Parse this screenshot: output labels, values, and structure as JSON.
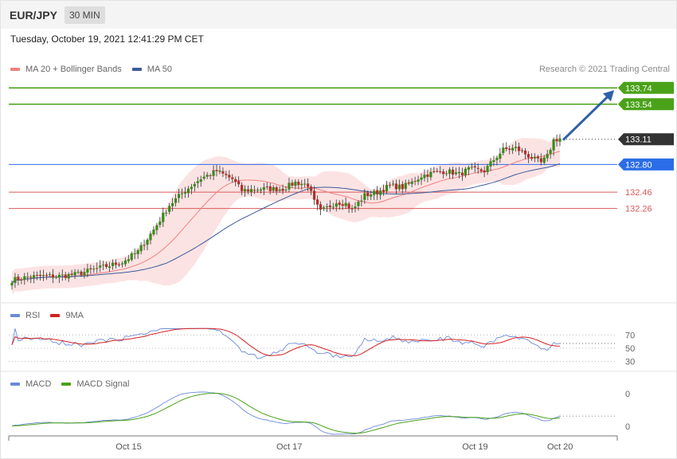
{
  "header": {
    "symbol": "EUR/JPY",
    "timeframe": "30 MIN"
  },
  "timestamp": "Tuesday, October 19, 2021 12:41:29 PM CET",
  "copyright": "Research © 2021 Trading Central",
  "colors": {
    "up": "#3a8a1a",
    "down": "#b1312d",
    "resistance": "#4aa219",
    "pivot": "#2b6de8",
    "support": "#d85a5a",
    "current": "#333333",
    "ma20": "#f08080",
    "ma50": "#3d5a9c",
    "bands": "#fbdede",
    "rsi": "#6b8ad8",
    "rsi_ma": "#d32020",
    "macd": "#6b8ad8",
    "macd_signal": "#4aa219",
    "arrow": "#2e5fa8"
  },
  "chart_data": [
    {
      "type": "candlestick",
      "id": "price",
      "legend": [
        {
          "name": "MA 20 + Bollinger Bands",
          "color": "#f08080"
        },
        {
          "name": "MA 50",
          "color": "#3d5a9c"
        }
      ],
      "ylim": [
        131.18,
        133.88
      ],
      "x_ticks": [
        {
          "label": "Oct 15",
          "index": 37
        },
        {
          "label": "Oct 17",
          "index": 88
        },
        {
          "label": "Oct 19",
          "index": 147
        },
        {
          "label": "Oct 20",
          "index": 174
        }
      ],
      "levels": [
        {
          "value": 133.74,
          "label": "133.74",
          "kind": "resistance"
        },
        {
          "value": 133.54,
          "label": "133.54",
          "kind": "resistance"
        },
        {
          "value": 133.11,
          "label": "133.11",
          "kind": "current"
        },
        {
          "value": 132.8,
          "label": "132.80",
          "kind": "pivot"
        },
        {
          "value": 132.46,
          "label": "132.46",
          "kind": "support"
        },
        {
          "value": 132.26,
          "label": "132.26",
          "kind": "support"
        }
      ],
      "arrow": {
        "from_value": 133.1,
        "to_value": 133.74
      },
      "anchors": [
        [
          0,
          131.38
        ],
        [
          5,
          131.42
        ],
        [
          10,
          131.43
        ],
        [
          15,
          131.43
        ],
        [
          20,
          131.45
        ],
        [
          25,
          131.5
        ],
        [
          30,
          131.55
        ],
        [
          35,
          131.6
        ],
        [
          40,
          131.73
        ],
        [
          45,
          132.0
        ],
        [
          50,
          132.3
        ],
        [
          55,
          132.48
        ],
        [
          60,
          132.63
        ],
        [
          65,
          132.72
        ],
        [
          70,
          132.62
        ],
        [
          73,
          132.48
        ],
        [
          78,
          132.5
        ],
        [
          82,
          132.5
        ],
        [
          86,
          132.5
        ],
        [
          90,
          132.58
        ],
        [
          94,
          132.55
        ],
        [
          96,
          132.34
        ],
        [
          98,
          132.22
        ],
        [
          103,
          132.34
        ],
        [
          106,
          132.32
        ],
        [
          108,
          132.24
        ],
        [
          112,
          132.42
        ],
        [
          116,
          132.46
        ],
        [
          120,
          132.54
        ],
        [
          124,
          132.52
        ],
        [
          127,
          132.58
        ],
        [
          130,
          132.66
        ],
        [
          134,
          132.7
        ],
        [
          138,
          132.72
        ],
        [
          142,
          132.68
        ],
        [
          145,
          132.74
        ],
        [
          150,
          132.72
        ],
        [
          153,
          132.86
        ],
        [
          156,
          132.98
        ],
        [
          160,
          133.0
        ],
        [
          163,
          132.93
        ],
        [
          166,
          132.86
        ],
        [
          168,
          132.82
        ],
        [
          170,
          132.9
        ],
        [
          172,
          133.1
        ],
        [
          174,
          133.12
        ]
      ]
    },
    {
      "type": "line",
      "id": "rsi",
      "series": [
        {
          "name": "RSI",
          "color": "#6b8ad8"
        },
        {
          "name": "9MA",
          "color": "#d32020"
        }
      ],
      "ylim": [
        20,
        80
      ],
      "y_ticks": [
        70,
        50,
        30
      ]
    },
    {
      "type": "line",
      "id": "macd",
      "series": [
        {
          "name": "MACD",
          "color": "#6b8ad8"
        },
        {
          "name": "MACD Signal",
          "color": "#4aa219"
        }
      ],
      "y_ticks": [
        "0",
        "0"
      ]
    }
  ]
}
